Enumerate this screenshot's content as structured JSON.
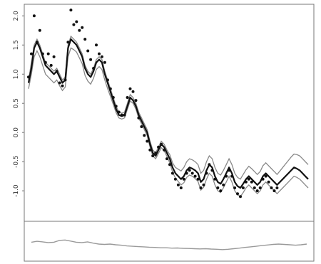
{
  "chart_data": {
    "type": "line",
    "title": "",
    "xlabel": "",
    "ylabel": "",
    "ylim": [
      -1.45,
      2.15
    ],
    "grid": false,
    "y_ticks": [
      {
        "value": 2.0,
        "label": "2.0"
      },
      {
        "value": 1.5,
        "label": "1.5"
      },
      {
        "value": 1.0,
        "label": "1.0"
      },
      {
        "value": 0.5,
        "label": "0.5"
      },
      {
        "value": 0.0,
        "label": "0.0"
      },
      {
        "value": -0.5,
        "label": "-0.5"
      },
      {
        "value": -1.0,
        "label": "-1.0"
      }
    ],
    "x": [
      1,
      2,
      3,
      4,
      5,
      6,
      7,
      8,
      9,
      10,
      11,
      12,
      13,
      14,
      15,
      16,
      17,
      18,
      19,
      20,
      21,
      22,
      23,
      24,
      25,
      26,
      27,
      28,
      29,
      30,
      31,
      32,
      33,
      34,
      35,
      36,
      37,
      38,
      39,
      40,
      41,
      42,
      43,
      44,
      45,
      46,
      47,
      48,
      49,
      50,
      51,
      52,
      53,
      54,
      55,
      56,
      57,
      58,
      59,
      60,
      61,
      62,
      63,
      64,
      65,
      66,
      67,
      68,
      69,
      70,
      71,
      72,
      73,
      74,
      75,
      76,
      77,
      78,
      79,
      80,
      81,
      82,
      83,
      84,
      85,
      86,
      87,
      88,
      89,
      90,
      91,
      92,
      93,
      94,
      95,
      96,
      97,
      98,
      99,
      100
    ],
    "series": [
      {
        "role": "line",
        "color": "#111111",
        "values": [
          0.85,
          1.1,
          1.45,
          1.55,
          1.45,
          1.3,
          1.15,
          1.1,
          1.05,
          1.0,
          1.05,
          0.95,
          0.85,
          0.9,
          1.45,
          1.6,
          1.55,
          1.5,
          1.4,
          1.3,
          1.1,
          1.0,
          0.95,
          1.05,
          1.2,
          1.25,
          1.2,
          1.0,
          0.85,
          0.7,
          0.55,
          0.4,
          0.3,
          0.28,
          0.3,
          0.45,
          0.6,
          0.55,
          0.45,
          0.3,
          0.2,
          0.1,
          0.0,
          -0.2,
          -0.35,
          -0.4,
          -0.3,
          -0.2,
          -0.25,
          -0.35,
          -0.45,
          -0.6,
          -0.7,
          -0.75,
          -0.8,
          -0.75,
          -0.65,
          -0.6,
          -0.62,
          -0.65,
          -0.7,
          -0.85,
          -0.8,
          -0.65,
          -0.55,
          -0.6,
          -0.75,
          -0.85,
          -0.88,
          -0.8,
          -0.7,
          -0.6,
          -0.7,
          -0.85,
          -0.92,
          -0.95,
          -0.88,
          -0.8,
          -0.75,
          -0.8,
          -0.85,
          -0.9,
          -0.85,
          -0.75,
          -0.7,
          -0.75,
          -0.8,
          -0.85,
          -0.9,
          -0.85,
          -0.8,
          -0.75,
          -0.7,
          -0.65,
          -0.6,
          -0.62,
          -0.65,
          -0.7,
          -0.75,
          -0.8
        ]
      },
      {
        "role": "upper-band",
        "color": "#888888",
        "values": [
          0.9,
          1.2,
          1.5,
          1.6,
          1.5,
          1.35,
          1.2,
          1.15,
          1.1,
          1.05,
          1.1,
          1.0,
          0.9,
          0.95,
          1.5,
          1.65,
          1.6,
          1.55,
          1.45,
          1.35,
          1.15,
          1.05,
          1.0,
          1.1,
          1.25,
          1.3,
          1.25,
          1.05,
          0.9,
          0.75,
          0.6,
          0.45,
          0.35,
          0.33,
          0.35,
          0.5,
          0.65,
          0.6,
          0.5,
          0.35,
          0.25,
          0.15,
          0.05,
          -0.15,
          -0.3,
          -0.35,
          -0.25,
          -0.15,
          -0.2,
          -0.3,
          -0.38,
          -0.52,
          -0.6,
          -0.63,
          -0.66,
          -0.6,
          -0.5,
          -0.45,
          -0.47,
          -0.5,
          -0.55,
          -0.7,
          -0.65,
          -0.5,
          -0.4,
          -0.45,
          -0.6,
          -0.7,
          -0.73,
          -0.65,
          -0.55,
          -0.45,
          -0.55,
          -0.7,
          -0.77,
          -0.8,
          -0.72,
          -0.64,
          -0.58,
          -0.62,
          -0.67,
          -0.72,
          -0.67,
          -0.57,
          -0.52,
          -0.57,
          -0.62,
          -0.67,
          -0.72,
          -0.66,
          -0.6,
          -0.54,
          -0.48,
          -0.42,
          -0.37,
          -0.38,
          -0.4,
          -0.45,
          -0.5,
          -0.55
        ]
      },
      {
        "role": "lower-band",
        "color": "#888888",
        "values": [
          0.75,
          1.0,
          1.3,
          1.4,
          1.3,
          1.15,
          1.0,
          0.95,
          0.9,
          0.85,
          0.9,
          0.8,
          0.72,
          0.78,
          1.3,
          1.45,
          1.42,
          1.38,
          1.28,
          1.18,
          0.98,
          0.88,
          0.83,
          0.93,
          1.08,
          1.13,
          1.08,
          0.9,
          0.75,
          0.62,
          0.48,
          0.34,
          0.25,
          0.23,
          0.25,
          0.4,
          0.54,
          0.5,
          0.4,
          0.25,
          0.15,
          0.05,
          -0.05,
          -0.25,
          -0.4,
          -0.45,
          -0.36,
          -0.26,
          -0.31,
          -0.41,
          -0.52,
          -0.68,
          -0.78,
          -0.84,
          -0.9,
          -0.86,
          -0.77,
          -0.73,
          -0.75,
          -0.79,
          -0.84,
          -0.99,
          -0.94,
          -0.8,
          -0.7,
          -0.75,
          -0.9,
          -1.0,
          -1.03,
          -0.95,
          -0.85,
          -0.75,
          -0.85,
          -1.0,
          -1.07,
          -1.1,
          -1.03,
          -0.95,
          -0.9,
          -0.95,
          -1.0,
          -1.05,
          -1.0,
          -0.9,
          -0.85,
          -0.9,
          -0.95,
          -1.0,
          -1.05,
          -1.0,
          -0.95,
          -0.9,
          -0.85,
          -0.8,
          -0.75,
          -0.77,
          -0.8,
          -0.85,
          -0.9,
          -0.95
        ]
      },
      {
        "role": "points",
        "color": "#111111",
        "points": [
          [
            1,
            0.95
          ],
          [
            2,
            1.35
          ],
          [
            3,
            2.0
          ],
          [
            4,
            1.55
          ],
          [
            5,
            1.75
          ],
          [
            6,
            1.35
          ],
          [
            7,
            1.2
          ],
          [
            8,
            1.35
          ],
          [
            9,
            1.15
          ],
          [
            10,
            1.3
          ],
          [
            11,
            1.05
          ],
          [
            12,
            0.85
          ],
          [
            13,
            0.8
          ],
          [
            14,
            0.9
          ],
          [
            15,
            1.55
          ],
          [
            16,
            2.1
          ],
          [
            17,
            1.85
          ],
          [
            18,
            1.9
          ],
          [
            19,
            1.75
          ],
          [
            20,
            1.8
          ],
          [
            21,
            1.6
          ],
          [
            22,
            1.4
          ],
          [
            23,
            1.25
          ],
          [
            24,
            1.1
          ],
          [
            25,
            1.5
          ],
          [
            26,
            1.35
          ],
          [
            27,
            1.3
          ],
          [
            28,
            1.2
          ],
          [
            29,
            0.9
          ],
          [
            30,
            0.75
          ],
          [
            31,
            0.6
          ],
          [
            32,
            0.45
          ],
          [
            33,
            0.35
          ],
          [
            34,
            0.3
          ],
          [
            35,
            0.3
          ],
          [
            36,
            0.6
          ],
          [
            37,
            0.75
          ],
          [
            38,
            0.7
          ],
          [
            39,
            0.55
          ],
          [
            40,
            0.25
          ],
          [
            41,
            0.1
          ],
          [
            42,
            -0.05
          ],
          [
            43,
            -0.15
          ],
          [
            44,
            -0.3
          ],
          [
            45,
            -0.4
          ],
          [
            46,
            -0.35
          ],
          [
            47,
            -0.25
          ],
          [
            48,
            -0.2
          ],
          [
            49,
            -0.3
          ],
          [
            50,
            -0.45
          ],
          [
            51,
            -0.55
          ],
          [
            52,
            -0.7
          ],
          [
            53,
            -0.8
          ],
          [
            54,
            -0.9
          ],
          [
            55,
            -0.95
          ],
          [
            56,
            -0.8
          ],
          [
            57,
            -0.7
          ],
          [
            58,
            -0.65
          ],
          [
            59,
            -0.7
          ],
          [
            60,
            -0.75
          ],
          [
            61,
            -0.8
          ],
          [
            62,
            -0.95
          ],
          [
            63,
            -0.9
          ],
          [
            64,
            -0.7
          ],
          [
            65,
            -0.55
          ],
          [
            66,
            -0.65
          ],
          [
            67,
            -0.8
          ],
          [
            68,
            -0.95
          ],
          [
            69,
            -1.0
          ],
          [
            70,
            -0.9
          ],
          [
            71,
            -0.75
          ],
          [
            72,
            -0.65
          ],
          [
            73,
            -0.75
          ],
          [
            74,
            -0.95
          ],
          [
            75,
            -1.05
          ],
          [
            76,
            -1.1
          ],
          [
            77,
            -0.95
          ],
          [
            78,
            -0.85
          ],
          [
            79,
            -0.8
          ],
          [
            80,
            -0.85
          ],
          [
            81,
            -0.95
          ],
          [
            82,
            -1.0
          ],
          [
            83,
            -0.95
          ],
          [
            84,
            -0.8
          ],
          [
            85,
            -0.75
          ],
          [
            86,
            -0.85
          ],
          [
            87,
            -0.95
          ],
          [
            88,
            -1.0
          ],
          [
            89,
            -0.95
          ]
        ]
      }
    ],
    "subpanel": {
      "type": "line",
      "values": [
        0.6,
        0.65,
        0.62,
        0.58,
        0.6,
        0.7,
        0.72,
        0.66,
        0.6,
        0.58,
        0.62,
        0.55,
        0.5,
        0.48,
        0.5,
        0.46,
        0.44,
        0.4,
        0.38,
        0.36,
        0.35,
        0.33,
        0.32,
        0.3,
        0.3,
        0.28,
        0.29,
        0.27,
        0.26,
        0.25,
        0.24,
        0.25,
        0.23,
        0.22,
        0.2,
        0.22,
        0.25,
        0.28,
        0.32,
        0.35,
        0.38,
        0.42,
        0.45,
        0.48,
        0.5,
        0.48,
        0.46,
        0.44,
        0.46,
        0.5
      ]
    }
  }
}
